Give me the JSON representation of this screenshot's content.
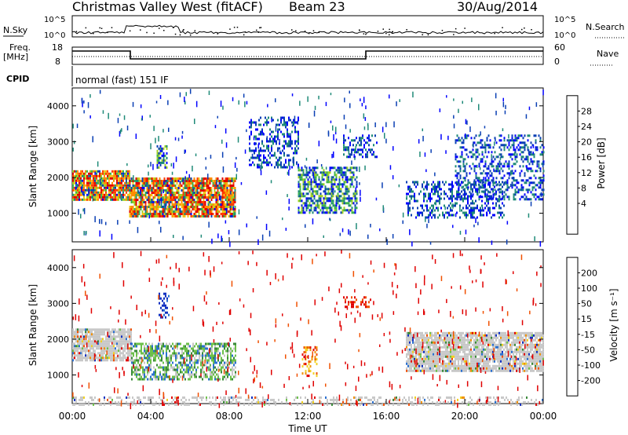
{
  "header": {
    "station": "Christmas Valley West (fitACF)",
    "beam": "Beam 23",
    "date": "30/Aug/2014"
  },
  "summary_panels": {
    "nsky_label": "N.Sky",
    "nsky_ticks": [
      "10^5",
      "10^0"
    ],
    "nsearch_label": "N.Search",
    "nsearch_ticks": [
      "10^5",
      "10^0"
    ],
    "freq_label_1": "Freq.",
    "freq_label_2": "[MHz]",
    "freq_ticks": [
      "18",
      "8"
    ],
    "nave_label": "Nave",
    "nave_ticks": [
      "60",
      "0"
    ],
    "cpid_label": "CPID",
    "cpid_value": "normal (fast) 151 IF"
  },
  "chart_data": [
    {
      "type": "heatmap",
      "parameter": "Power",
      "ylabel": "Slant Range [km]",
      "ylim": [
        200,
        4500
      ],
      "yticks": [
        "1000",
        "2000",
        "3000",
        "4000"
      ],
      "xlim": [
        0,
        24
      ],
      "colorbar_label": "Power [dB]",
      "colorbar_ticks": [
        "4",
        "8",
        "12",
        "16",
        "20",
        "24",
        "28"
      ],
      "colorbar_colors": [
        "#0000ff",
        "#0a3fb4",
        "#1f8a78",
        "#3cb44b",
        "#a0d020",
        "#f5c518",
        "#ff8c00",
        "#ff3c00",
        "#e00000"
      ],
      "echo_regions": [
        {
          "t": [
            0.0,
            2.9
          ],
          "range": [
            1400,
            2200
          ],
          "level": "high"
        },
        {
          "t": [
            2.9,
            8.3
          ],
          "range": [
            900,
            2000
          ],
          "level": "high"
        },
        {
          "t": [
            4.3,
            4.8
          ],
          "range": [
            2300,
            2900
          ],
          "level": "medium"
        },
        {
          "t": [
            9.0,
            11.5
          ],
          "range": [
            2300,
            3700
          ],
          "level": "low"
        },
        {
          "t": [
            11.5,
            14.5
          ],
          "range": [
            1000,
            2300
          ],
          "level": "medium"
        },
        {
          "t": [
            13.8,
            15.5
          ],
          "range": [
            2600,
            3200
          ],
          "level": "low"
        },
        {
          "t": [
            17.0,
            22.0
          ],
          "range": [
            900,
            1900
          ],
          "level": "low"
        },
        {
          "t": [
            19.5,
            24.0
          ],
          "range": [
            1400,
            3200
          ],
          "level": "low"
        }
      ]
    },
    {
      "type": "heatmap",
      "parameter": "Velocity",
      "ylabel": "Slant Range [km]",
      "ylim": [
        200,
        4500
      ],
      "yticks": [
        "1000",
        "2000",
        "3000",
        "4000"
      ],
      "xlim": [
        0,
        24
      ],
      "xlabel": "Time UT",
      "xticks": [
        "00:00",
        "04:00",
        "08:00",
        "12:00",
        "16:00",
        "20:00",
        "00:00"
      ],
      "colorbar_label": "Velocity [m s⁻¹]",
      "colorbar_ticks": [
        "200",
        "100",
        "50",
        "15",
        "-15",
        "-50",
        "-100",
        "-200"
      ],
      "colorbar_colors": [
        "#1030c0",
        "#2a70d0",
        "#3a8a3a",
        "#6cc04a",
        "#c8c8c8",
        "#f0d020",
        "#f09000",
        "#f05000",
        "#e00000"
      ],
      "echo_regions": [
        {
          "t": [
            0.0,
            3.0
          ],
          "range": [
            1400,
            2300
          ],
          "level": "ground"
        },
        {
          "t": [
            3.0,
            8.3
          ],
          "range": [
            900,
            1900
          ],
          "level": "positive"
        },
        {
          "t": [
            4.4,
            4.9
          ],
          "range": [
            2600,
            3300
          ],
          "level": "strong-positive"
        },
        {
          "t": [
            11.7,
            12.5
          ],
          "range": [
            1000,
            1800
          ],
          "level": "negative"
        },
        {
          "t": [
            13.8,
            15.2
          ],
          "range": [
            2900,
            3200
          ],
          "level": "strong-negative"
        },
        {
          "t": [
            17.0,
            24.0
          ],
          "range": [
            1100,
            2200
          ],
          "level": "ground"
        },
        {
          "t": [
            0.0,
            24.0
          ],
          "range": [
            200,
            400
          ],
          "level": "ground-scatter"
        }
      ]
    }
  ]
}
